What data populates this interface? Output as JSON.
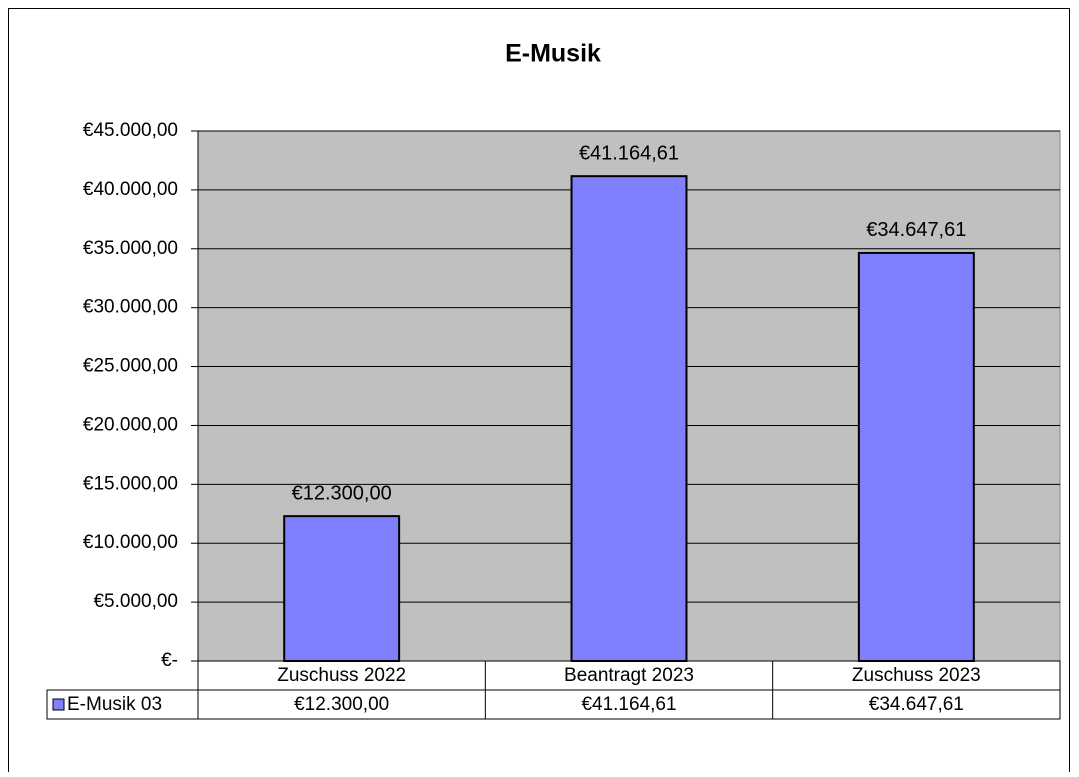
{
  "chart_data": {
    "type": "bar",
    "title": "E-Musik",
    "categories": [
      "Zuschuss 2022",
      "Beantragt 2023",
      "Zuschuss 2023"
    ],
    "series": [
      {
        "name": "E-Musik 03",
        "color": "#8080ff",
        "values": [
          12300,
          41164.61,
          34647.61
        ],
        "value_labels": [
          "€12.300,00",
          "€41.164,61",
          "€34.647,61"
        ]
      }
    ],
    "ylim": [
      0,
      45000
    ],
    "yticks": [
      {
        "value": 0,
        "label": "€-"
      },
      {
        "value": 5000,
        "label": "€5.000,00"
      },
      {
        "value": 10000,
        "label": "€10.000,00"
      },
      {
        "value": 15000,
        "label": "€15.000,00"
      },
      {
        "value": 20000,
        "label": "€20.000,00"
      },
      {
        "value": 25000,
        "label": "€25.000,00"
      },
      {
        "value": 30000,
        "label": "€30.000,00"
      },
      {
        "value": 35000,
        "label": "€35.000,00"
      },
      {
        "value": 40000,
        "label": "€40.000,00"
      },
      {
        "value": 45000,
        "label": "€45.000,00"
      }
    ],
    "grid": true,
    "plot_background": "#c0c0c0",
    "data_table": true
  }
}
